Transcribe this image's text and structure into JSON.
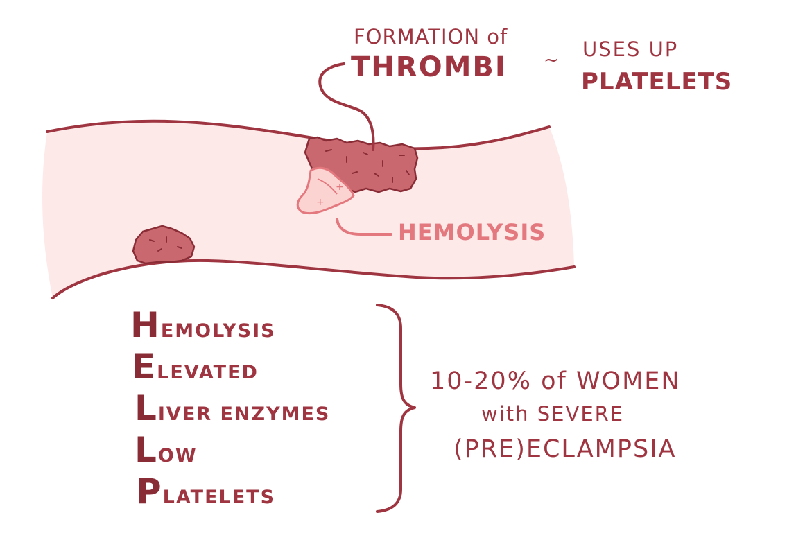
{
  "annotations": {
    "formation_of": "FORMATION of",
    "thrombi": "THROMBI",
    "tilde": "~",
    "uses_up": "USES UP",
    "platelets": "PLATELETS",
    "hemolysis_label": "HEMOLYSIS"
  },
  "acronym": [
    {
      "initial": "H",
      "rest": "EMOLYSIS"
    },
    {
      "initial": "E",
      "rest": "LEVATED"
    },
    {
      "initial": "L",
      "rest": "IVER ENZYMES"
    },
    {
      "initial": "L",
      "rest": "OW"
    },
    {
      "initial": "P",
      "rest": "LATELETS"
    }
  ],
  "statistic": {
    "line1": "10-20% of WOMEN",
    "line2": "with SEVERE",
    "line3": "(PRE)ECLAMPSIA"
  },
  "colors": {
    "ink": "#9e3540",
    "vessel_fill": "#fde9e8",
    "clot_fill": "#c9686e",
    "hemolysis_pink": "#e4787f"
  }
}
